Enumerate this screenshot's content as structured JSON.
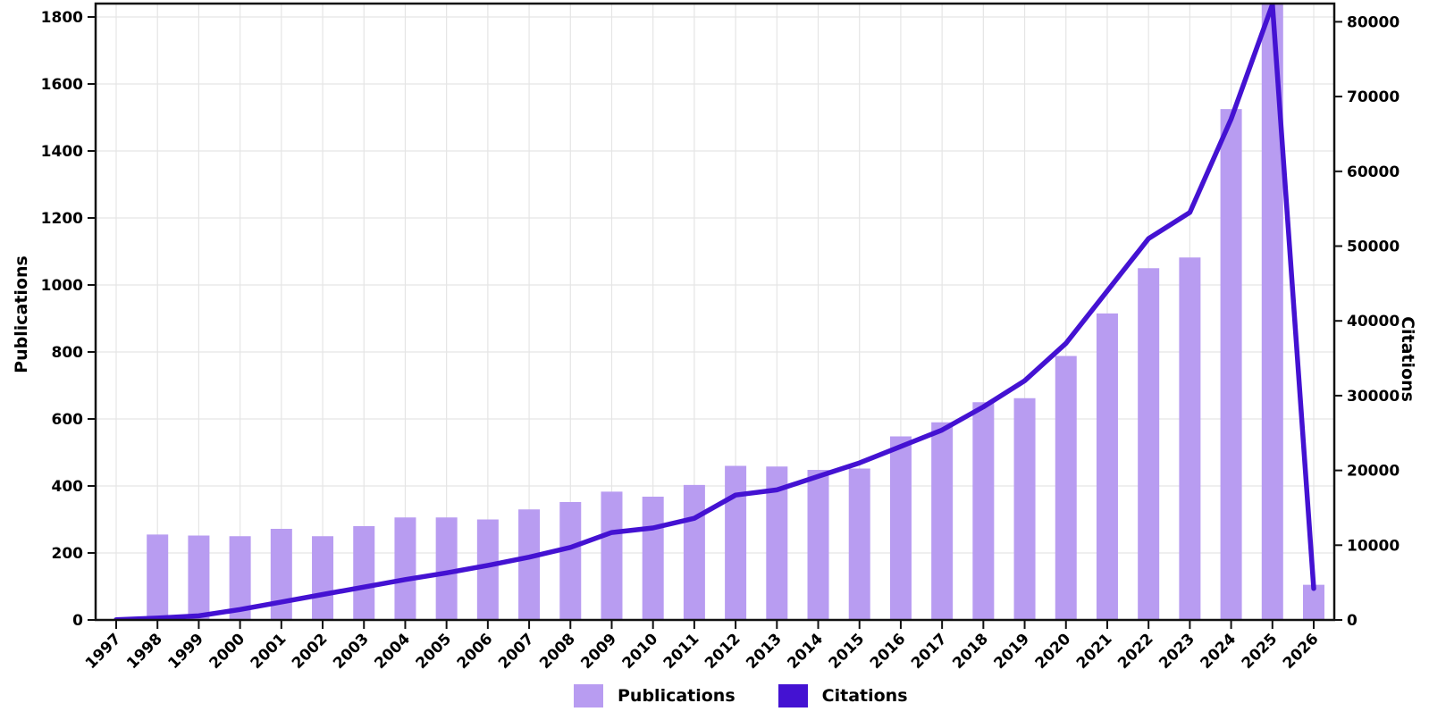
{
  "chart_data": {
    "type": "bar+line combo, dual y-axis",
    "title": "",
    "categories": [
      "1997",
      "1998",
      "1999",
      "2000",
      "2001",
      "2002",
      "2003",
      "2004",
      "2005",
      "2006",
      "2007",
      "2008",
      "2009",
      "2010",
      "2011",
      "2012",
      "2013",
      "2014",
      "2015",
      "2016",
      "2017",
      "2018",
      "2019",
      "2020",
      "2021",
      "2022",
      "2023",
      "2024",
      "2025",
      "2026"
    ],
    "series": [
      {
        "name": "Publications",
        "type": "bar",
        "axis": "left",
        "color": "#b89cf1",
        "values": [
          0,
          255,
          252,
          250,
          272,
          250,
          280,
          306,
          306,
          300,
          330,
          352,
          383,
          368,
          403,
          460,
          458,
          448,
          452,
          548,
          590,
          650,
          662,
          788,
          915,
          1050,
          1082,
          1525,
          1850,
          105
        ]
      },
      {
        "name": "Citations",
        "type": "line",
        "axis": "right",
        "color": "#4412d2",
        "values": [
          30,
          250,
          550,
          1400,
          2400,
          3400,
          4400,
          5400,
          6300,
          7300,
          8400,
          9700,
          11700,
          12300,
          13600,
          16700,
          17400,
          19200,
          21000,
          23200,
          25400,
          28500,
          32000,
          37000,
          44000,
          51000,
          54500,
          67000,
          82300,
          4200
        ]
      }
    ],
    "left_axis": {
      "label": "Publications",
      "ticks": [
        0,
        200,
        400,
        600,
        800,
        1000,
        1200,
        1400,
        1600,
        1800
      ],
      "ylim": [
        0,
        1800
      ]
    },
    "right_axis": {
      "label": "Citations",
      "ticks": [
        0,
        10000,
        20000,
        30000,
        40000,
        50000,
        60000,
        70000,
        80000
      ],
      "ylim": [
        0,
        80000
      ]
    },
    "legend": {
      "position": "bottom-center",
      "items": [
        {
          "label": "Publications",
          "color": "#b89cf1"
        },
        {
          "label": "Citations",
          "color": "#4412d2"
        }
      ]
    },
    "grid": "light gray horizontal lines at left-axis ticks and vertical lines at each year",
    "colors": {
      "background": "#ffffff",
      "grid": "#e5e5e5",
      "frame": "#111111",
      "text": "#000000"
    },
    "notes": "2025 bar and citation-line peak are clipped at the top of the plot frame"
  }
}
